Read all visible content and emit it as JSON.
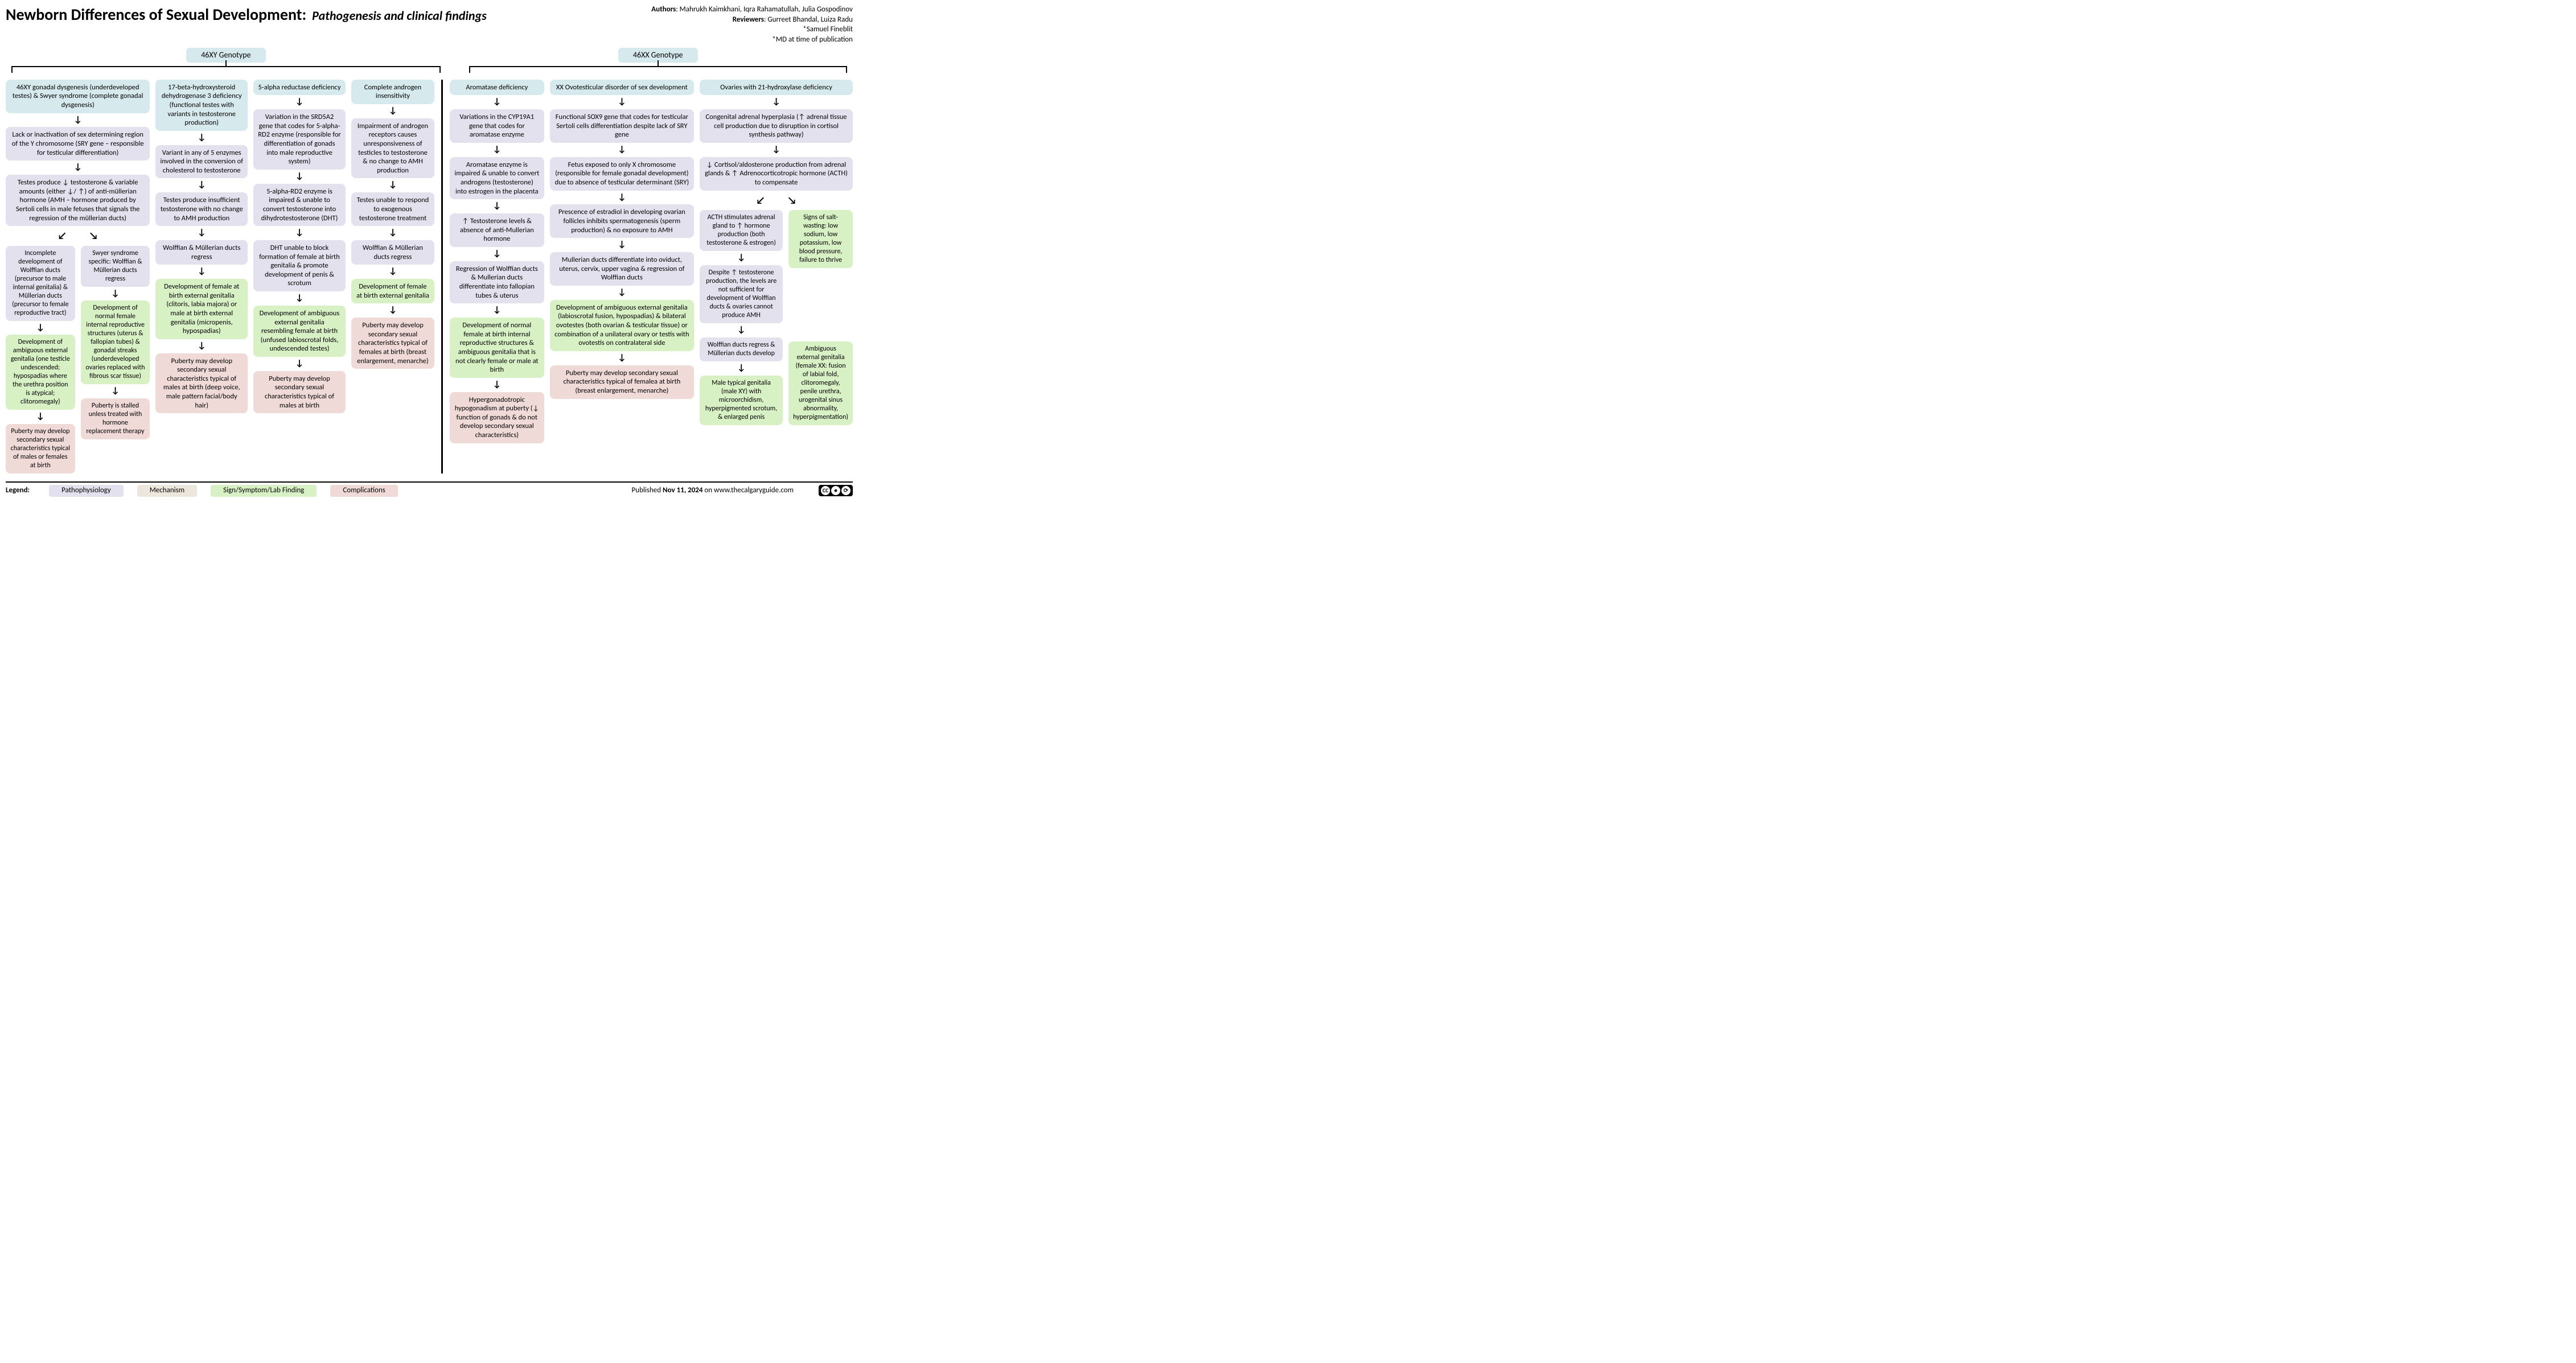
{
  "colors": {
    "pathophys": "#e4e1ee",
    "mechanism": "#ece6dc",
    "sign": "#d8f1c4",
    "complication": "#efdad8",
    "genotype": "#d6e9ec",
    "condition": "#d6e9ec",
    "page_bg": "#ffffff",
    "text": "#000000"
  },
  "header": {
    "title": "Newborn Differences of Sexual Development:",
    "subtitle": "Pathogenesis and clinical findings",
    "authors_label": "Authors",
    "authors": "Mahrukh Kaimkhani, Iqra Rahamatullah, Julia Gospodinov",
    "reviewers_label": "Reviewers",
    "reviewers": "Gurreet Bhandal, Luiza Radu",
    "extra1": "*Samuel Fineblit",
    "extra2": "*MD at time of publication"
  },
  "genotypes": {
    "left": "46XY Genotype",
    "right": "46XX Genotype"
  },
  "conditions": {
    "c1": "46XY gonadal dysgenesis (underdeveloped testes) & Swyer syndrome (complete gonadal dysgenesis)",
    "c2": "17-beta-hydroxysteroid dehydrogenase 3 deficiency (functional testes with variants in testosterone production)",
    "c3": "5-alpha reductase deficiency",
    "c4": "Complete androgen insensitivity",
    "c5": "Aromatase deficiency",
    "c6": "XX Ovotesticular disorder of sex development",
    "c7": "Ovaries with 21-hydroxylase deficiency"
  },
  "col1": {
    "p1": "Lack or inactivation of sex determining region of the Y chromosome (SRY gene – responsible for testicular differentiation)",
    "p2": "Testes produce ↓ testosterone & variable amounts (either ↓/ ↑) of anti-müllerian hormone (AMH – hormone produced by Sertoli cells in male fetuses that signals the regression of the müllerian ducts)",
    "left": {
      "p3": "Incomplete development of Wolffian ducts (precursor to male internal genitalia) & Müllerian ducts (precursor to female reproductive tract)",
      "s1": "Development of ambiguous external genitalia (one testicle undescended; hypospadias where the urethra position is atypical; clitoromegaly)",
      "x1": "Puberty may develop secondary sexual characteristics typical of males or females at birth"
    },
    "right": {
      "p3": "Swyer syndrome specific: Wolffian & Müllerian ducts regress",
      "s1": "Development of normal female internal reproductive structures (uterus & fallopian tubes) & gonadal streaks (underdeveloped ovaries replaced with fibrous scar tissue)",
      "x1": "Puberty is stalled unless treated with hormone replacement therapy"
    }
  },
  "col2": {
    "p1": "Variant in any of 5 enzymes involved in the conversion of cholesterol to testosterone",
    "p2": "Testes produce insufficient testosterone with no change to AMH production",
    "p3": "Wolffian & Müllerian ducts regress",
    "s1": "Development of female at birth external genitalia (clitoris, labia majora) or male at birth external genitalia (micropenis, hypospadias)",
    "x1": "Puberty may develop secondary sexual characteristics typical of males at birth (deep voice, male pattern facial/body hair)"
  },
  "col3": {
    "p1": "Variation in the SRD5A2 gene that codes for 5-alpha-RD2 enzyme (responsible for differentiation of gonads into male reproductive system)",
    "p2": "5-alpha-RD2 enzyme is impaired & unable to convert testosterone into dihydrotestosterone (DHT)",
    "p3": "DHT unable to block formation of female at birth genitalia & promote development of penis & scrotum",
    "s1": "Development of ambiguous external genitalia resembling female at birth (unfused labioscrotal folds, undescended testes)",
    "x1": "Puberty may develop secondary sexual characteristics typical of males at birth"
  },
  "col4": {
    "p1": "Impairment of androgen receptors causes unresponsiveness of testicles to testosterone & no change to AMH production",
    "p2": "Testes unable to respond to exogenous testosterone treatment",
    "p3": "Wolffian & Müllerian ducts regress",
    "s1": "Development of female at birth external genitalia",
    "x1": "Puberty may develop secondary sexual characteristics typical of females at birth (breast enlargement, menarche)"
  },
  "col5": {
    "p1": "Variations in the CYP19A1 gene that codes for aromatase enzyme",
    "p2": "Aromatase enzyme is impaired & unable to convert androgens (testosterone) into estrogen in the placenta",
    "p3": "↑ Testosterone levels & absence of anti-Mullerian hormone",
    "p4": "Regression of Wolffian ducts & Mullerian ducts differentiate into fallopian tubes & uterus",
    "s1": "Development of normal female at birth internal reproductive structures & ambiguous genitalia that is not clearly female or male at birth",
    "x1": "Hypergonadotropic hypogonadism at puberty (↓ function of gonads & do not develop secondary sexual characteristics)"
  },
  "col6": {
    "p1": "Functional SOX9 gene that codes for testicular Sertoli cells differentiation despite lack of SRY gene",
    "p2": "Fetus exposed to only X chromosome (responsible for female gonadal development) due to absence of testicular determinant (SRY)",
    "p3": "Prescence of estradiol in developing ovarian follicles inhibits spermatogenesis (sperm production) & no exposure to AMH",
    "p4": "Mullerian ducts differentiate into oviduct, uterus, cervix, upper vagina & regression of Wolffian ducts",
    "s1": "Development of ambiguous external genitalia (labioscrotal fusion, hypospadias) & bilateral ovotestes (both ovarian & testicular tissue) or combination of a unilateral ovary or testis with ovotestis on contralateral side",
    "x1": "Puberty may develop secondary sexual characteristics typical of femalea at birth (breast enlargement, menarche)"
  },
  "col7": {
    "p1": "Congenital adrenal hyperplasia (↑ adrenal tissue cell production due to disruption in cortisol synthesis pathway)",
    "p2": "↓ Cortisol/aldosterone production from adrenal glands & ↑ Adrenocorticotropic hormone (ACTH) to compensate",
    "left": {
      "p3": "ACTH stimulates adrenal gland to ↑ hormone production (both testosterone & estrogen)",
      "p4": "Despite ↑ testosterone production, the levels are not sufficient for development of Wolffian ducts & ovaries cannot produce AMH",
      "p5": "Wolffian ducts regress & Müllerian ducts develop",
      "s1": "Male typical genitalia (male XY) with microorchidism, hyperpigmented scrotum, & enlarged penis"
    },
    "right": {
      "s_top": "Signs of salt-wasting: low sodium, low potassium, low blood pressure, failure to thrive",
      "s_bot": "Ambiguous external genitalia (female XX: fusion of labial fold, clitoromegaly, penile urethra, urogenital sinus abnormality, hyperpigmentation)"
    }
  },
  "legend": {
    "label": "Legend:",
    "pathophys": "Pathophysiology",
    "mechanism": "Mechanism",
    "sign": "Sign/Symptom/Lab Finding",
    "complication": "Complications",
    "published_prefix": "Published ",
    "published_date": "Nov 11, 2024",
    "published_suffix": " on www.thecalgaryguide.com",
    "cc": "CC"
  },
  "widths": {
    "c1": 260,
    "c2": 166,
    "c3": 166,
    "c4": 150,
    "c5": 170,
    "c6": 260,
    "c7": 276
  }
}
